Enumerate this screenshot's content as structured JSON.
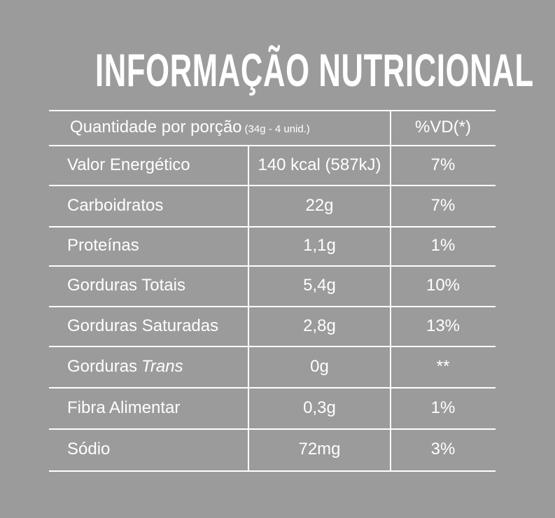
{
  "title": "INFORMAÇÃO NUTRICIONAL",
  "table": {
    "header": {
      "label": "Quantidade por porção",
      "portion": "(34g - 4 unid.)",
      "dv": "%VD(*)"
    },
    "rows": [
      {
        "label": "Valor Energético",
        "amount": "140 kcal (587kJ)",
        "dv": "7%"
      },
      {
        "label": "Carboidratos",
        "amount": "22g",
        "dv": "7%"
      },
      {
        "label": "Proteínas",
        "amount": "1,1g",
        "dv": "1%"
      },
      {
        "label": "Gorduras Totais",
        "amount": "5,4g",
        "dv": "10%"
      },
      {
        "label": "Gorduras Saturadas",
        "amount": "2,8g",
        "dv": "13%"
      },
      {
        "label": "Gorduras",
        "label_italic": "Trans",
        "amount": "0g",
        "dv": "**"
      },
      {
        "label": "Fibra Alimentar",
        "amount": "0,3g",
        "dv": "1%"
      },
      {
        "label": "Sódio",
        "amount": "72mg",
        "dv": "3%"
      }
    ]
  }
}
